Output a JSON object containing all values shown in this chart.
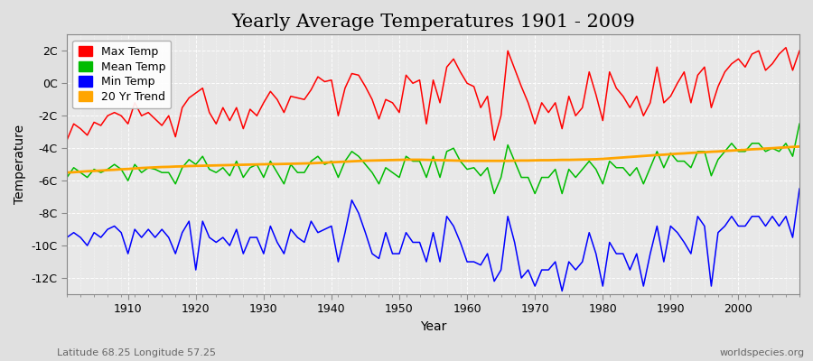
{
  "title": "Yearly Average Temperatures 1901 - 2009",
  "xlabel": "Year",
  "ylabel": "Temperature",
  "lat_lon_label": "Latitude 68.25 Longitude 57.25",
  "source_label": "worldspecies.org",
  "years": [
    1901,
    1902,
    1903,
    1904,
    1905,
    1906,
    1907,
    1908,
    1909,
    1910,
    1911,
    1912,
    1913,
    1914,
    1915,
    1916,
    1917,
    1918,
    1919,
    1920,
    1921,
    1922,
    1923,
    1924,
    1925,
    1926,
    1927,
    1928,
    1929,
    1930,
    1931,
    1932,
    1933,
    1934,
    1935,
    1936,
    1937,
    1938,
    1939,
    1940,
    1941,
    1942,
    1943,
    1944,
    1945,
    1946,
    1947,
    1948,
    1949,
    1950,
    1951,
    1952,
    1953,
    1954,
    1955,
    1956,
    1957,
    1958,
    1959,
    1960,
    1961,
    1962,
    1963,
    1964,
    1965,
    1966,
    1967,
    1968,
    1969,
    1970,
    1971,
    1972,
    1973,
    1974,
    1975,
    1976,
    1977,
    1978,
    1979,
    1980,
    1981,
    1982,
    1983,
    1984,
    1985,
    1986,
    1987,
    1988,
    1989,
    1990,
    1991,
    1992,
    1993,
    1994,
    1995,
    1996,
    1997,
    1998,
    1999,
    2000,
    2001,
    2002,
    2003,
    2004,
    2005,
    2006,
    2007,
    2008,
    2009
  ],
  "max_temp": [
    -3.5,
    -2.5,
    -2.8,
    -3.2,
    -2.4,
    -2.6,
    -2.0,
    -1.8,
    -2.0,
    -2.5,
    -1.2,
    -2.0,
    -1.8,
    -2.2,
    -2.6,
    -2.0,
    -3.3,
    -1.5,
    -0.9,
    -0.6,
    -0.3,
    -1.8,
    -2.5,
    -1.5,
    -2.3,
    -1.5,
    -2.8,
    -1.6,
    -2.0,
    -1.2,
    -0.5,
    -1.0,
    -1.8,
    -0.8,
    -0.9,
    -1.0,
    -0.4,
    0.4,
    0.1,
    0.2,
    -2.0,
    -0.3,
    0.6,
    0.5,
    -0.2,
    -1.0,
    -2.2,
    -1.0,
    -1.2,
    -1.8,
    0.5,
    0.0,
    0.2,
    -2.5,
    0.2,
    -1.2,
    1.0,
    1.5,
    0.7,
    0.0,
    -0.2,
    -1.5,
    -0.8,
    -3.5,
    -2.0,
    2.0,
    0.9,
    -0.2,
    -1.2,
    -2.5,
    -1.2,
    -1.8,
    -1.2,
    -2.8,
    -0.8,
    -2.0,
    -1.5,
    0.7,
    -0.7,
    -2.3,
    0.7,
    -0.3,
    -0.8,
    -1.5,
    -0.8,
    -2.0,
    -1.2,
    1.0,
    -1.2,
    -0.8,
    0.0,
    0.7,
    -1.2,
    0.5,
    1.0,
    -1.5,
    -0.2,
    0.7,
    1.2,
    1.5,
    1.0,
    1.8,
    2.0,
    0.8,
    1.2,
    1.8,
    2.2,
    0.8,
    2.0
  ],
  "mean_temp": [
    -5.8,
    -5.2,
    -5.5,
    -5.8,
    -5.3,
    -5.5,
    -5.3,
    -5.0,
    -5.3,
    -6.0,
    -5.0,
    -5.5,
    -5.2,
    -5.3,
    -5.5,
    -5.5,
    -6.2,
    -5.2,
    -4.7,
    -5.0,
    -4.5,
    -5.3,
    -5.5,
    -5.2,
    -5.7,
    -4.8,
    -5.8,
    -5.2,
    -5.0,
    -5.8,
    -4.8,
    -5.5,
    -6.2,
    -5.0,
    -5.5,
    -5.5,
    -4.8,
    -4.5,
    -5.0,
    -4.8,
    -5.8,
    -4.8,
    -4.2,
    -4.5,
    -5.0,
    -5.5,
    -6.2,
    -5.2,
    -5.5,
    -5.8,
    -4.5,
    -4.8,
    -4.8,
    -5.8,
    -4.5,
    -5.8,
    -4.2,
    -4.0,
    -4.8,
    -5.3,
    -5.2,
    -5.7,
    -5.2,
    -6.8,
    -5.8,
    -3.8,
    -4.8,
    -5.8,
    -5.8,
    -6.8,
    -5.8,
    -5.8,
    -5.3,
    -6.8,
    -5.3,
    -5.8,
    -5.3,
    -4.8,
    -5.3,
    -6.2,
    -4.8,
    -5.2,
    -5.2,
    -5.7,
    -5.2,
    -6.2,
    -5.2,
    -4.2,
    -5.2,
    -4.3,
    -4.8,
    -4.8,
    -5.2,
    -4.2,
    -4.2,
    -5.7,
    -4.7,
    -4.2,
    -3.7,
    -4.2,
    -4.2,
    -3.7,
    -3.7,
    -4.2,
    -4.0,
    -4.2,
    -3.7,
    -4.5,
    -2.5
  ],
  "min_temp": [
    -9.5,
    -9.2,
    -9.5,
    -10.0,
    -9.2,
    -9.5,
    -9.0,
    -8.8,
    -9.2,
    -10.5,
    -9.0,
    -9.5,
    -9.0,
    -9.5,
    -9.0,
    -9.5,
    -10.5,
    -9.2,
    -8.5,
    -11.5,
    -8.5,
    -9.5,
    -9.8,
    -9.5,
    -10.0,
    -9.0,
    -10.5,
    -9.5,
    -9.5,
    -10.5,
    -8.8,
    -9.8,
    -10.5,
    -9.0,
    -9.5,
    -9.8,
    -8.5,
    -9.2,
    -9.0,
    -8.8,
    -11.0,
    -9.2,
    -7.2,
    -8.0,
    -9.2,
    -10.5,
    -10.8,
    -9.2,
    -10.5,
    -10.5,
    -9.2,
    -9.8,
    -9.8,
    -11.0,
    -9.2,
    -11.0,
    -8.2,
    -8.8,
    -9.8,
    -11.0,
    -11.0,
    -11.2,
    -10.5,
    -12.2,
    -11.5,
    -8.2,
    -9.8,
    -12.0,
    -11.5,
    -12.5,
    -11.5,
    -11.5,
    -11.0,
    -12.8,
    -11.0,
    -11.5,
    -11.0,
    -9.2,
    -10.5,
    -12.5,
    -9.8,
    -10.5,
    -10.5,
    -11.5,
    -10.5,
    -12.5,
    -10.5,
    -8.8,
    -11.0,
    -8.8,
    -9.2,
    -9.8,
    -10.5,
    -8.2,
    -8.8,
    -12.5,
    -9.2,
    -8.8,
    -8.2,
    -8.8,
    -8.8,
    -8.2,
    -8.2,
    -8.8,
    -8.2,
    -8.8,
    -8.2,
    -9.5,
    -6.5
  ],
  "trend": [
    -5.5,
    -5.48,
    -5.45,
    -5.42,
    -5.4,
    -5.38,
    -5.35,
    -5.33,
    -5.3,
    -5.28,
    -5.25,
    -5.22,
    -5.2,
    -5.18,
    -5.16,
    -5.15,
    -5.13,
    -5.12,
    -5.1,
    -5.09,
    -5.08,
    -5.07,
    -5.06,
    -5.05,
    -5.04,
    -5.03,
    -5.02,
    -5.01,
    -5.0,
    -4.99,
    -4.98,
    -4.98,
    -4.97,
    -4.96,
    -4.95,
    -4.94,
    -4.93,
    -4.91,
    -4.89,
    -4.87,
    -4.85,
    -4.83,
    -4.81,
    -4.79,
    -4.77,
    -4.76,
    -4.75,
    -4.74,
    -4.73,
    -4.72,
    -4.71,
    -4.71,
    -4.71,
    -4.72,
    -4.73,
    -4.74,
    -4.75,
    -4.76,
    -4.77,
    -4.78,
    -4.78,
    -4.78,
    -4.78,
    -4.78,
    -4.78,
    -4.78,
    -4.77,
    -4.76,
    -4.76,
    -4.75,
    -4.74,
    -4.74,
    -4.73,
    -4.72,
    -4.72,
    -4.71,
    -4.7,
    -4.69,
    -4.68,
    -4.66,
    -4.63,
    -4.6,
    -4.57,
    -4.54,
    -4.51,
    -4.48,
    -4.45,
    -4.42,
    -4.4,
    -4.37,
    -4.34,
    -4.32,
    -4.29,
    -4.27,
    -4.25,
    -4.22,
    -4.2,
    -4.17,
    -4.15,
    -4.12,
    -4.1,
    -4.07,
    -4.05,
    -4.02,
    -4.0,
    -3.97,
    -3.95,
    -3.92,
    -3.9
  ],
  "max_color": "#ff0000",
  "mean_color": "#00bb00",
  "min_color": "#0000ff",
  "trend_color": "#ffa500",
  "bg_color": "#e0e0e0",
  "plot_bg_color": "#e8e8e8",
  "grid_color": "#ffffff",
  "ylim": [
    -13,
    3
  ],
  "yticks": [
    -12,
    -10,
    -8,
    -6,
    -4,
    -2,
    0,
    2
  ],
  "ytick_labels": [
    "-12C",
    "-10C",
    "-8C",
    "-6C",
    "-4C",
    "-2C",
    "0C",
    "2C"
  ],
  "title_fontsize": 15,
  "axis_fontsize": 10,
  "tick_fontsize": 9,
  "legend_fontsize": 9
}
